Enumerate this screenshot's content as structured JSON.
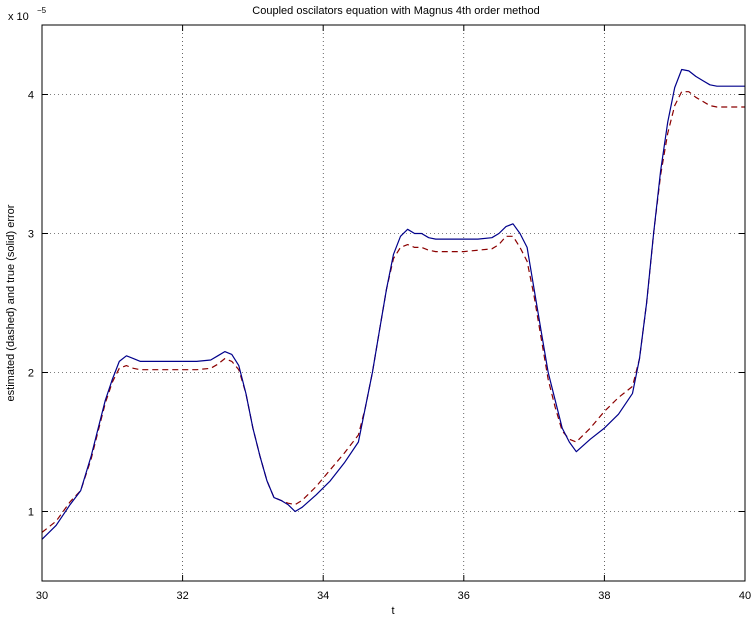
{
  "chart_data": {
    "type": "line",
    "title": "Coupled oscilators equation with Magnus 4th order method",
    "xlabel": "t",
    "ylabel": "estimated (dashed) and true (solid) error",
    "y_multiplier_base": "x 10",
    "y_multiplier_exp": "−5",
    "xlim": [
      30,
      40
    ],
    "ylim": [
      0.5,
      4.5
    ],
    "xticks": [
      30,
      32,
      34,
      36,
      38,
      40
    ],
    "yticks": [
      1,
      2,
      3,
      4
    ],
    "grid": true,
    "colors": {
      "true_error": "#00008b",
      "estimated_error": "#8b0000"
    },
    "series": [
      {
        "style": "solid",
        "x": [
          30.0,
          30.2,
          30.4,
          30.55,
          30.7,
          30.8,
          30.9,
          31.0,
          31.1,
          31.2,
          31.3,
          31.4,
          31.6,
          31.8,
          32.0,
          32.2,
          32.4,
          32.5,
          32.6,
          32.7,
          32.8,
          32.9,
          33.0,
          33.1,
          33.2,
          33.3,
          33.4,
          33.5,
          33.6,
          33.7,
          33.9,
          34.1,
          34.3,
          34.5,
          34.6,
          34.7,
          34.8,
          34.9,
          35.0,
          35.1,
          35.2,
          35.3,
          35.4,
          35.5,
          35.6,
          35.8,
          36.0,
          36.2,
          36.4,
          36.5,
          36.6,
          36.7,
          36.8,
          36.9,
          37.0,
          37.1,
          37.2,
          37.3,
          37.4,
          37.5,
          37.6,
          37.8,
          38.0,
          38.2,
          38.4,
          38.5,
          38.6,
          38.7,
          38.8,
          38.9,
          39.0,
          39.1,
          39.2,
          39.3,
          39.4,
          39.5,
          39.6,
          39.8,
          40.0
        ],
        "y": [
          0.8,
          0.9,
          1.05,
          1.15,
          1.4,
          1.6,
          1.8,
          1.95,
          2.08,
          2.12,
          2.1,
          2.08,
          2.08,
          2.08,
          2.08,
          2.08,
          2.09,
          2.12,
          2.15,
          2.13,
          2.05,
          1.85,
          1.6,
          1.4,
          1.22,
          1.1,
          1.08,
          1.05,
          1.0,
          1.03,
          1.12,
          1.22,
          1.35,
          1.5,
          1.75,
          2.0,
          2.3,
          2.6,
          2.85,
          2.98,
          3.03,
          3.0,
          3.0,
          2.97,
          2.96,
          2.96,
          2.96,
          2.96,
          2.97,
          3.0,
          3.05,
          3.07,
          3.0,
          2.9,
          2.6,
          2.3,
          2.0,
          1.8,
          1.6,
          1.5,
          1.43,
          1.52,
          1.6,
          1.7,
          1.85,
          2.1,
          2.5,
          3.0,
          3.45,
          3.8,
          4.05,
          4.18,
          4.17,
          4.13,
          4.1,
          4.07,
          4.06,
          4.06,
          4.06
        ]
      },
      {
        "style": "dashed",
        "x": [
          30.0,
          30.2,
          30.4,
          30.55,
          30.7,
          30.8,
          30.9,
          31.0,
          31.1,
          31.2,
          31.3,
          31.4,
          31.6,
          31.8,
          32.0,
          32.2,
          32.4,
          32.5,
          32.6,
          32.7,
          32.8,
          32.9,
          33.0,
          33.1,
          33.2,
          33.3,
          33.4,
          33.5,
          33.6,
          33.7,
          33.9,
          34.1,
          34.3,
          34.5,
          34.6,
          34.7,
          34.8,
          34.9,
          35.0,
          35.1,
          35.2,
          35.3,
          35.4,
          35.5,
          35.6,
          35.8,
          36.0,
          36.2,
          36.4,
          36.5,
          36.6,
          36.7,
          36.8,
          36.9,
          37.0,
          37.1,
          37.2,
          37.3,
          37.4,
          37.5,
          37.6,
          37.8,
          38.0,
          38.2,
          38.4,
          38.5,
          38.6,
          38.7,
          38.8,
          38.9,
          39.0,
          39.1,
          39.2,
          39.3,
          39.4,
          39.5,
          39.6,
          39.8,
          40.0
        ],
        "y": [
          0.85,
          0.93,
          1.07,
          1.15,
          1.38,
          1.58,
          1.78,
          1.93,
          2.03,
          2.05,
          2.03,
          2.02,
          2.02,
          2.02,
          2.02,
          2.02,
          2.03,
          2.06,
          2.1,
          2.08,
          2.02,
          1.85,
          1.6,
          1.4,
          1.22,
          1.1,
          1.08,
          1.06,
          1.05,
          1.08,
          1.18,
          1.3,
          1.42,
          1.55,
          1.75,
          2.0,
          2.3,
          2.6,
          2.82,
          2.9,
          2.92,
          2.9,
          2.9,
          2.88,
          2.87,
          2.87,
          2.87,
          2.88,
          2.89,
          2.92,
          2.98,
          2.98,
          2.9,
          2.8,
          2.55,
          2.25,
          1.95,
          1.75,
          1.58,
          1.52,
          1.5,
          1.6,
          1.72,
          1.82,
          1.9,
          2.1,
          2.5,
          3.0,
          3.42,
          3.72,
          3.92,
          4.02,
          4.02,
          3.98,
          3.95,
          3.92,
          3.91,
          3.91,
          3.91
        ]
      }
    ]
  }
}
